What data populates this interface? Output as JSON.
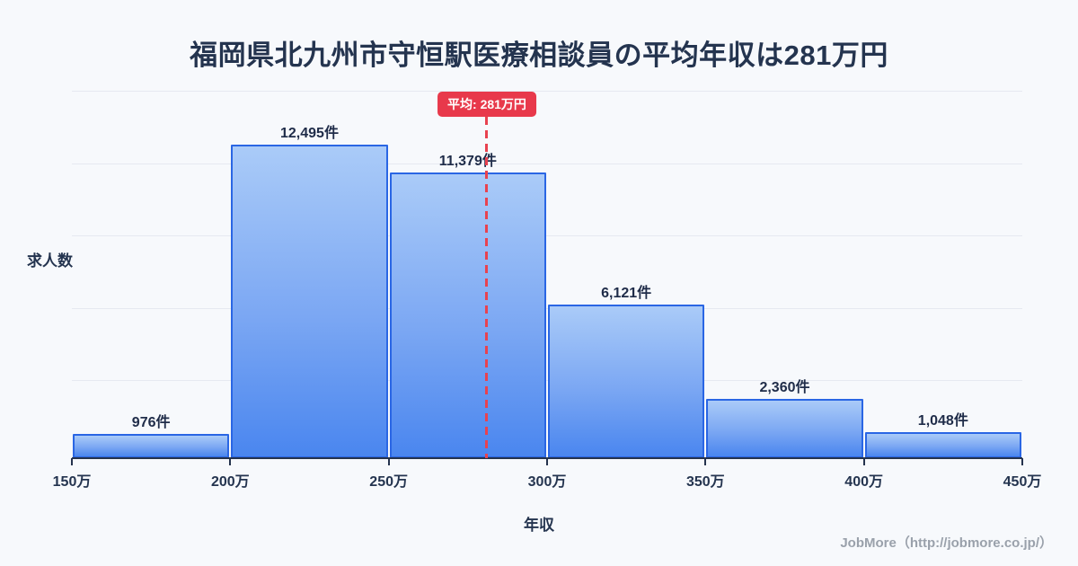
{
  "title": "福岡県北九州市守恒駅医療相談員の平均年収は281万円",
  "axes": {
    "y_label": "求人数",
    "x_label": "年収"
  },
  "footer": "JobMore（http://jobmore.co.jp/）",
  "colors": {
    "background": "#f7f9fc",
    "title_text": "#24344f",
    "bar_border": "#2a66e4",
    "bar_gradient_top": "#aacbf8",
    "bar_gradient_bottom": "#4a86ef",
    "average_red": "#e8394b",
    "grid": "#e6e9f1",
    "footer_gray": "#9aa1ab"
  },
  "chart_data": {
    "type": "bar",
    "title": "福岡県北九州市守恒駅医療相談員の平均年収は281万円",
    "categories": [
      "150万-200万",
      "200万-250万",
      "250万-300万",
      "300万-350万",
      "350万-400万",
      "400万-450万"
    ],
    "values": [
      976,
      12495,
      11379,
      6121,
      2360,
      1048
    ],
    "bar_labels": [
      "976件",
      "12,495件",
      "11,379件",
      "6,121件",
      "2,360件",
      "1,048件"
    ],
    "x_tick_labels": [
      "150万",
      "200万",
      "250万",
      "300万",
      "350万",
      "400万",
      "450万"
    ],
    "x_axis_range_man": [
      150,
      450
    ],
    "average": {
      "value_man": 281,
      "label": "平均: 281万円"
    },
    "xlabel": "年収",
    "ylabel": "求人数",
    "ylim": [
      0,
      13000
    ],
    "grid": true,
    "legend": false
  }
}
